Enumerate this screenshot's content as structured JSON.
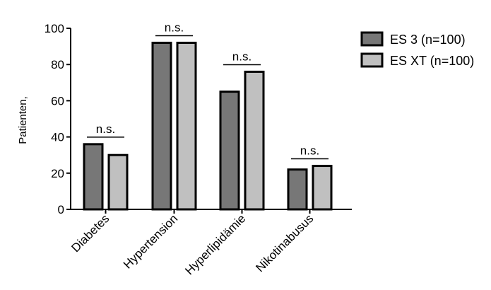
{
  "chart_data": {
    "type": "bar",
    "title": "",
    "xlabel": "",
    "ylabel": "Patienten,",
    "ylim": [
      0,
      100
    ],
    "yticks": [
      0,
      20,
      40,
      60,
      80,
      100
    ],
    "categories": [
      "Diabetes",
      "Hypertension",
      "Hyperlipidämie",
      "Nikotinabusus"
    ],
    "series": [
      {
        "name": "ES 3 (n=100)",
        "color": "#777777",
        "values": [
          36,
          92,
          65,
          22
        ]
      },
      {
        "name": "ES XT (n=100)",
        "color": "#c0c0c0",
        "values": [
          30,
          92,
          76,
          24
        ]
      }
    ],
    "significance": [
      "n.s.",
      "n.s.",
      "n.s.",
      "n.s."
    ],
    "legend_position": "top-right",
    "grid": false
  }
}
